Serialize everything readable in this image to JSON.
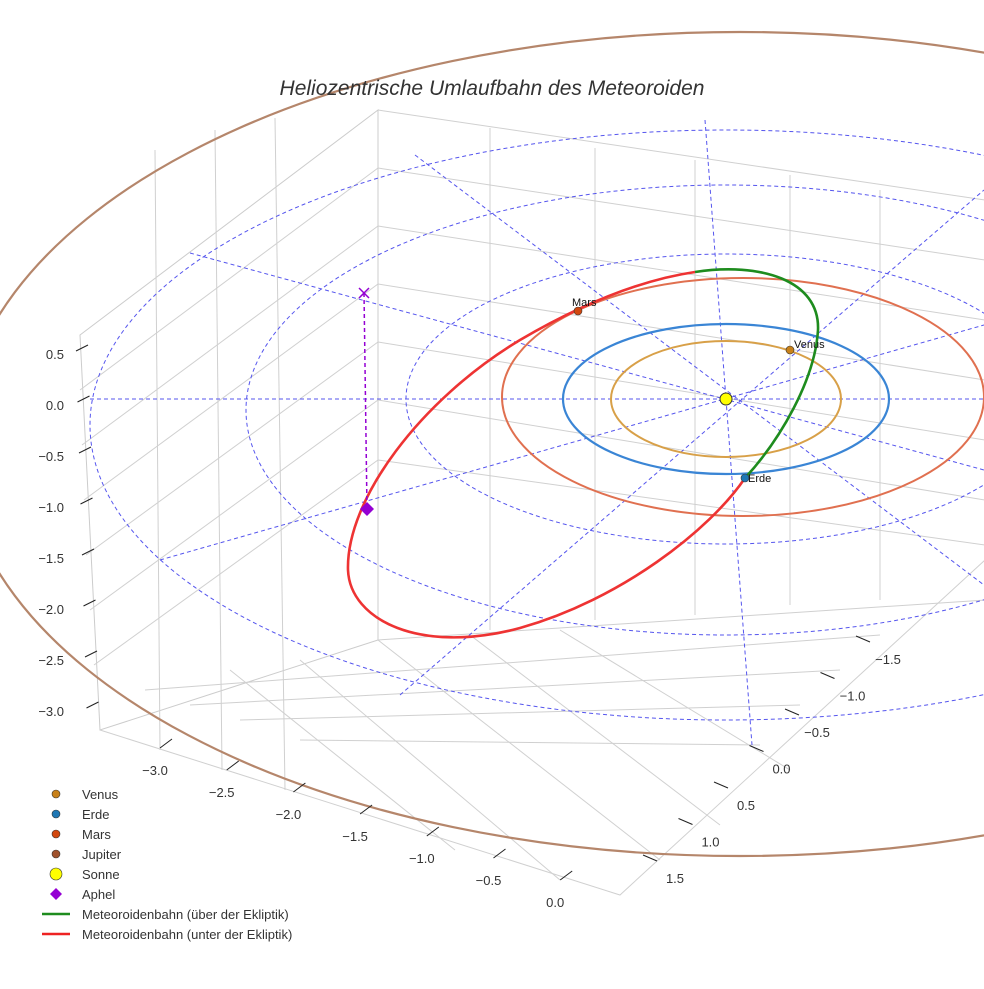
{
  "chart_data": {
    "type": "scatter3d",
    "title": "Heliozentrische Umlaufbahn des Meteoroiden",
    "axes": {
      "x": {
        "ticks": [
          "−3.0",
          "−2.5",
          "−2.0",
          "−1.5",
          "−1.0",
          "−0.5",
          "0.0"
        ]
      },
      "y": {
        "ticks": [
          "−1.5",
          "−1.0",
          "−0.5",
          "0.0",
          "0.5",
          "1.0",
          "1.5"
        ]
      },
      "z": {
        "ticks": [
          "0.5",
          "0.0",
          "−0.5",
          "−1.0",
          "−1.5",
          "−2.0",
          "−2.5",
          "−3.0"
        ]
      }
    },
    "orbits_au": {
      "Venus": 0.72,
      "Erde": 1.0,
      "Mars": 1.52,
      "Jupiter": 5.2
    },
    "planet_labels": [
      "Venus",
      "Erde",
      "Mars"
    ],
    "legend": [
      {
        "label": "Venus",
        "marker": "circle",
        "color": "#c8811a"
      },
      {
        "label": "Erde",
        "marker": "circle",
        "color": "#1f77b4"
      },
      {
        "label": "Mars",
        "marker": "circle",
        "color": "#d2480f"
      },
      {
        "label": "Jupiter",
        "marker": "circle",
        "color": "#a0522d"
      },
      {
        "label": "Sonne",
        "marker": "circle-large",
        "color": "#ffff00"
      },
      {
        "label": "Aphel",
        "marker": "diamond",
        "color": "#9400d3"
      },
      {
        "label": "Meteoroidenbahn (über der Ekliptik)",
        "marker": "line",
        "color": "#1e8c1e"
      },
      {
        "label": "Meteoroidenbahn (unter der Ekliptik)",
        "marker": "line",
        "color": "#ee2222"
      }
    ],
    "legend_position": "bottom-left"
  }
}
